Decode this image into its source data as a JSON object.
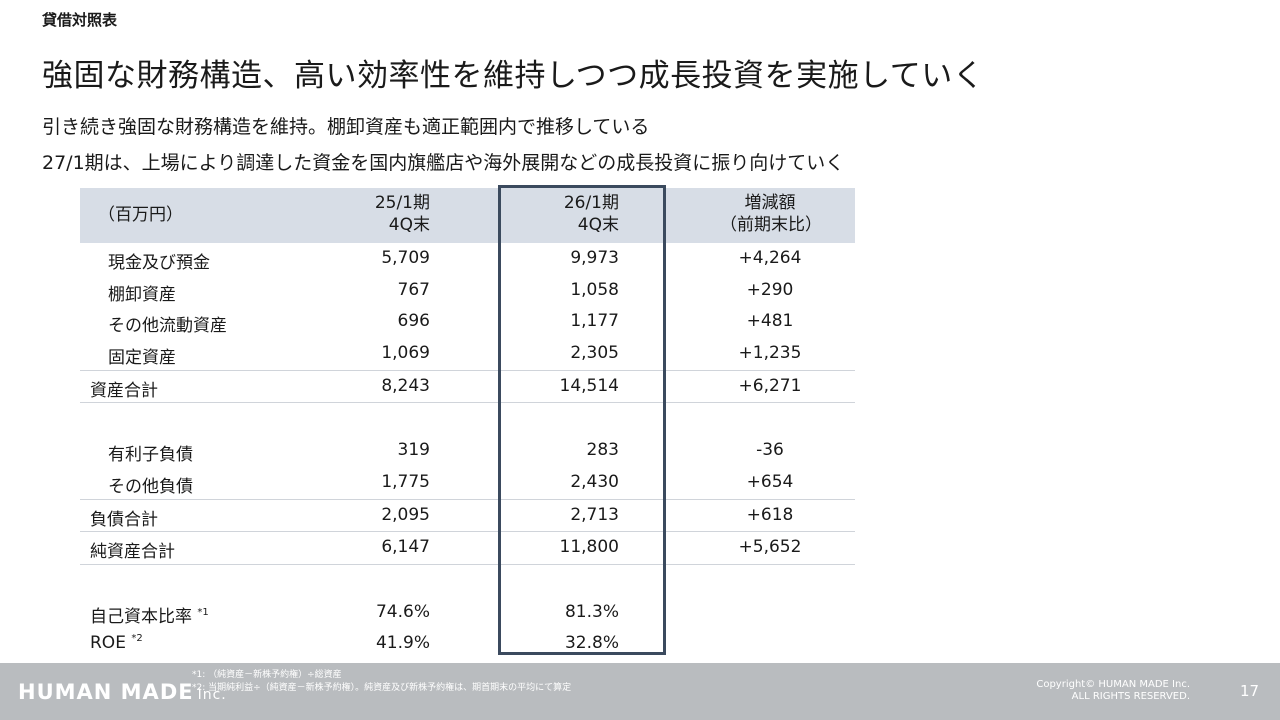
{
  "section_label": "貸借対照表",
  "headline": "強固な財務構造、高い効率性を維持しつつ成長投資を実施していく",
  "subtitle_lines": [
    "引き続き強固な財務構造を維持。棚卸資産も適正範囲内で推移している",
    "27/1期は、上場により調達した資金を国内旗艦店や海外展開などの成長投資に振り向けていく"
  ],
  "table": {
    "unit_label": "（百万円）",
    "col_25": [
      "25/1期",
      "4Q末"
    ],
    "col_26": [
      "26/1期",
      "4Q末"
    ],
    "col_diff": [
      "増減額",
      "（前期末比）"
    ],
    "rows": [
      {
        "label": "現金及び預金",
        "v25": "5,709",
        "v26": "9,973",
        "diff": "+4,264",
        "mark": ""
      },
      {
        "label": "棚卸資産",
        "v25": "767",
        "v26": "1,058",
        "diff": "+290",
        "mark": ""
      },
      {
        "label": "その他流動資産",
        "v25": "696",
        "v26": "1,177",
        "diff": "+481",
        "mark": ""
      },
      {
        "label": "固定資産",
        "v25": "1,069",
        "v26": "2,305",
        "diff": "+1,235",
        "mark": ""
      },
      {
        "label": "資産合計",
        "v25": "8,243",
        "v26": "14,514",
        "diff": "+6,271",
        "mark": ""
      },
      {
        "label": "有利子負債",
        "v25": "319",
        "v26": "283",
        "diff": "-36",
        "mark": ""
      },
      {
        "label": "その他負債",
        "v25": "1,775",
        "v26": "2,430",
        "diff": "+654",
        "mark": ""
      },
      {
        "label": "負債合計",
        "v25": "2,095",
        "v26": "2,713",
        "diff": "+618",
        "mark": ""
      },
      {
        "label": "純資産合計",
        "v25": "6,147",
        "v26": "11,800",
        "diff": "+5,652",
        "mark": ""
      },
      {
        "label": "自己資本比率",
        "v25": "74.6%",
        "v26": "81.3%",
        "diff": "",
        "mark": "*1"
      },
      {
        "label": "ROE",
        "v25": "41.9%",
        "v26": "32.8%",
        "diff": "",
        "mark": "*2"
      }
    ]
  },
  "footer": {
    "logo": "HUMAN MADE",
    "logo_inc": "Inc.",
    "notes": [
      "*1: （純資産－新株予約権）÷総資産",
      "*2: 当期純利益÷（純資産－新株予約権）。純資産及び新株予約権は、期首期末の平均にて算定"
    ],
    "copyright": [
      "Copyright© HUMAN MADE Inc.",
      "ALL RIGHTS RESERVED."
    ],
    "page_number": "17"
  },
  "colors": {
    "header_fill": "#d7dde6",
    "highlight_border": "#3b4a5e",
    "footer_fill": "#b9bcbf"
  }
}
